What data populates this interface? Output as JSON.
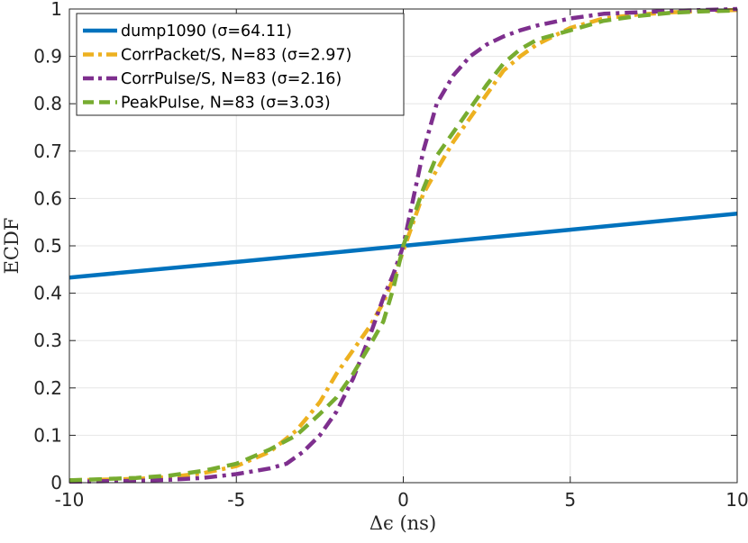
{
  "chart_data": {
    "type": "line",
    "xlabel": "Δϵ (ns)",
    "ylabel": "ECDF",
    "xlim": [
      -10,
      10
    ],
    "ylim": [
      0,
      1
    ],
    "xticks": [
      -10,
      -5,
      0,
      5,
      10
    ],
    "yticks": [
      0,
      0.1,
      0.2,
      0.3,
      0.4,
      0.5,
      0.6,
      0.7,
      0.8,
      0.9,
      1
    ],
    "xtick_labels": [
      "-10",
      "-5",
      "0",
      "5",
      "10"
    ],
    "ytick_labels": [
      "0",
      "0.1",
      "0.2",
      "0.3",
      "0.4",
      "0.5",
      "0.6",
      "0.7",
      "0.8",
      "0.9",
      "1"
    ],
    "grid": true,
    "legend_position": "top-left",
    "series": [
      {
        "name": "dump1090 (σ=64.11)",
        "color": "#0072BD",
        "style": "solid",
        "x": [
          -10,
          -5,
          0,
          5,
          10
        ],
        "y": [
          0.433,
          0.466,
          0.5,
          0.534,
          0.568
        ]
      },
      {
        "name": "CorrPacket/S, N=83 (σ=2.97)",
        "color": "#EDB120",
        "style": "dashdot",
        "x": [
          -10,
          -8,
          -7,
          -6,
          -5,
          -4,
          -3.2,
          -2.5,
          -2,
          -1.5,
          -1,
          -0.6,
          -0.3,
          0,
          0.3,
          0.6,
          1,
          1.5,
          2,
          2.5,
          3,
          3.5,
          4,
          5,
          6,
          7,
          8,
          9,
          10
        ],
        "y": [
          0.005,
          0.008,
          0.012,
          0.02,
          0.035,
          0.065,
          0.11,
          0.17,
          0.23,
          0.28,
          0.33,
          0.38,
          0.43,
          0.49,
          0.55,
          0.61,
          0.66,
          0.72,
          0.77,
          0.82,
          0.87,
          0.9,
          0.925,
          0.96,
          0.98,
          0.988,
          0.993,
          0.996,
          0.998
        ]
      },
      {
        "name": "CorrPulse/S, N=83 (σ=2.16)",
        "color": "#7E2F8E",
        "style": "dashdot",
        "x": [
          -10,
          -8,
          -7,
          -6,
          -5,
          -4,
          -3.5,
          -3,
          -2.5,
          -2,
          -1.5,
          -1,
          -0.6,
          -0.3,
          0,
          0.3,
          0.6,
          1,
          1.5,
          2,
          2.5,
          3,
          3.5,
          4,
          5,
          6,
          7,
          8,
          9,
          10
        ],
        "y": [
          0.002,
          0.004,
          0.006,
          0.01,
          0.018,
          0.03,
          0.04,
          0.065,
          0.1,
          0.15,
          0.22,
          0.31,
          0.39,
          0.44,
          0.5,
          0.6,
          0.7,
          0.8,
          0.86,
          0.9,
          0.925,
          0.942,
          0.955,
          0.965,
          0.98,
          0.99,
          0.993,
          0.996,
          0.998,
          1
        ]
      },
      {
        "name": "PeakPulse, N=83 (σ=3.03)",
        "color": "#77AC30",
        "style": "dashed",
        "x": [
          -10,
          -8,
          -7,
          -6,
          -5,
          -4,
          -3.2,
          -2.5,
          -2,
          -1.5,
          -1,
          -0.6,
          -0.3,
          0,
          0.3,
          0.6,
          1,
          1.5,
          2,
          2.5,
          3,
          3.5,
          4,
          5,
          6,
          7,
          8,
          9,
          10
        ],
        "y": [
          0.005,
          0.01,
          0.015,
          0.025,
          0.04,
          0.07,
          0.1,
          0.145,
          0.18,
          0.23,
          0.29,
          0.34,
          0.41,
          0.5,
          0.56,
          0.62,
          0.69,
          0.74,
          0.79,
          0.84,
          0.885,
          0.915,
          0.935,
          0.955,
          0.975,
          0.985,
          0.992,
          0.995,
          0.997
        ]
      }
    ]
  }
}
